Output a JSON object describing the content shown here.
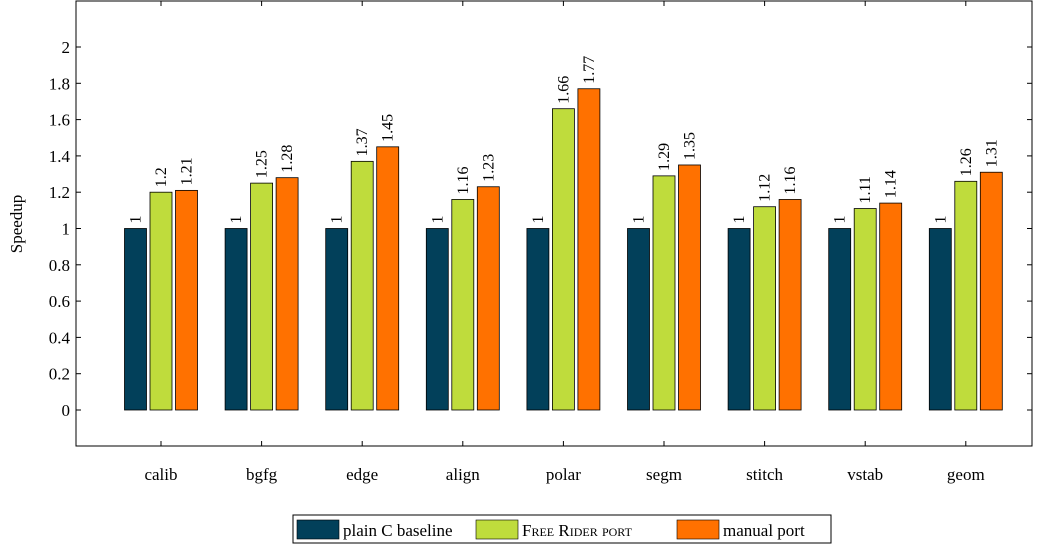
{
  "chart_data": {
    "type": "bar",
    "categories": [
      "calib",
      "bgfg",
      "edge",
      "align",
      "polar",
      "segm",
      "stitch",
      "vstab",
      "geom"
    ],
    "series": [
      {
        "name": "plain C baseline",
        "color": "#02405a",
        "values": [
          1,
          1,
          1,
          1,
          1,
          1,
          1,
          1,
          1
        ],
        "labels": [
          "1",
          "1",
          "1",
          "1",
          "1",
          "1",
          "1",
          "1",
          "1"
        ]
      },
      {
        "name": "Free Rider port",
        "color": "#bfdc3c",
        "values": [
          1.2,
          1.25,
          1.37,
          1.16,
          1.66,
          1.29,
          1.12,
          1.11,
          1.26
        ],
        "labels": [
          "1.2",
          "1.25",
          "1.37",
          "1.16",
          "1.66",
          "1.29",
          "1.12",
          "1.11",
          "1.26"
        ]
      },
      {
        "name": "manual port",
        "color": "#ff7100",
        "values": [
          1.21,
          1.28,
          1.45,
          1.23,
          1.77,
          1.35,
          1.16,
          1.14,
          1.31
        ],
        "labels": [
          "1.21",
          "1.28",
          "1.45",
          "1.23",
          "1.77",
          "1.35",
          "1.16",
          "1.14",
          "1.31"
        ]
      }
    ],
    "ylabel": "Speedup",
    "xlabel": "",
    "ylim": [
      -0.2,
      2.2
    ],
    "yticks": [
      0,
      0.2,
      0.4,
      0.6,
      0.8,
      1,
      1.2,
      1.4,
      1.6,
      1.8,
      2
    ],
    "ytick_labels": [
      "0",
      "0.2",
      "0.4",
      "0.6",
      "0.8",
      "1",
      "1.2",
      "1.4",
      "1.6",
      "1.8",
      "2"
    ],
    "grid": false,
    "legend_placement": "bottom-center"
  }
}
